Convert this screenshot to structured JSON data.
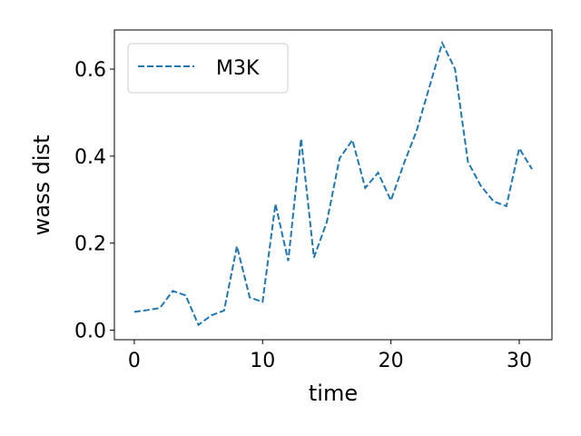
{
  "chart_data": {
    "type": "line",
    "xlabel": "time",
    "ylabel": "wass dist",
    "xlim": [
      -1.55,
      32.55
    ],
    "ylim": [
      -0.022,
      0.69
    ],
    "x_ticks": [
      0,
      10,
      20,
      30
    ],
    "y_ticks": [
      0.0,
      0.2,
      0.4,
      0.6
    ],
    "x_tick_labels": [
      "0",
      "10",
      "20",
      "30"
    ],
    "y_tick_labels": [
      "0.0",
      "0.2",
      "0.4",
      "0.6"
    ],
    "grid": false,
    "legend_position": "top-left",
    "series": [
      {
        "name": "M3K",
        "color": "#1f77b4",
        "line_style": "dashed",
        "x": [
          0,
          1,
          2,
          3,
          4,
          5,
          6,
          7,
          8,
          9,
          10,
          11,
          12,
          13,
          14,
          15,
          16,
          17,
          18,
          19,
          20,
          21,
          22,
          23,
          24,
          25,
          26,
          27,
          28,
          29,
          30,
          31
        ],
        "y": [
          0.042,
          0.046,
          0.051,
          0.09,
          0.08,
          0.012,
          0.034,
          0.045,
          0.193,
          0.075,
          0.065,
          0.29,
          0.159,
          0.44,
          0.167,
          0.248,
          0.395,
          0.437,
          0.327,
          0.362,
          0.298,
          0.382,
          0.458,
          0.559,
          0.66,
          0.6,
          0.387,
          0.332,
          0.296,
          0.285,
          0.418,
          0.37
        ]
      }
    ]
  }
}
